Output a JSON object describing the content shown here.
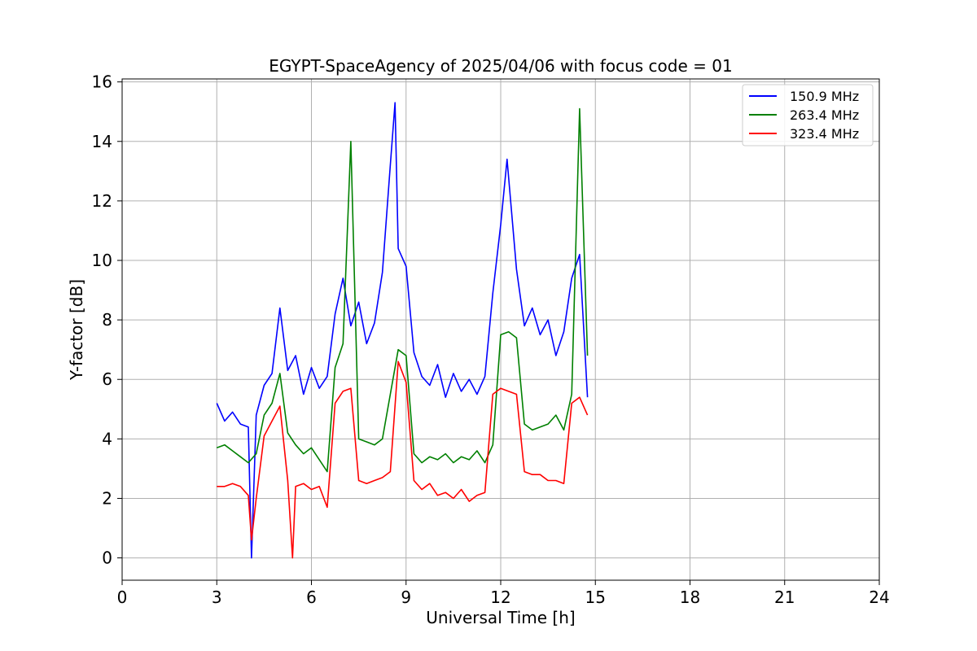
{
  "chart_data": {
    "type": "line",
    "title": "EGYPT-SpaceAgency of 2025/04/06 with focus code = 01",
    "xlabel": "Universal Time [h]",
    "ylabel": "Y-factor [dB]",
    "xlim": [
      0,
      24
    ],
    "ylim": [
      -0.75,
      16.1
    ],
    "xticks": [
      0,
      3,
      6,
      9,
      12,
      15,
      18,
      21,
      24
    ],
    "yticks": [
      0,
      2,
      4,
      6,
      8,
      10,
      12,
      14,
      16
    ],
    "grid": true,
    "legend_position": "top-right",
    "series": [
      {
        "name": "150.9 MHz",
        "color": "#0000ff",
        "x": [
          3.0,
          3.25,
          3.5,
          3.75,
          4.0,
          4.1,
          4.25,
          4.5,
          4.75,
          5.0,
          5.25,
          5.5,
          5.75,
          6.0,
          6.25,
          6.5,
          6.75,
          7.0,
          7.25,
          7.5,
          7.75,
          8.0,
          8.25,
          8.5,
          8.65,
          8.75,
          9.0,
          9.25,
          9.5,
          9.75,
          10.0,
          10.25,
          10.5,
          10.75,
          11.0,
          11.25,
          11.5,
          11.75,
          12.0,
          12.2,
          12.5,
          12.75,
          13.0,
          13.25,
          13.5,
          13.75,
          14.0,
          14.25,
          14.5,
          14.75
        ],
        "y": [
          5.2,
          4.6,
          4.9,
          4.5,
          4.4,
          0.0,
          4.8,
          5.8,
          6.2,
          8.4,
          6.3,
          6.8,
          5.5,
          6.4,
          5.7,
          6.1,
          8.2,
          9.4,
          7.8,
          8.6,
          7.2,
          7.9,
          9.6,
          13.2,
          15.3,
          10.4,
          9.8,
          6.9,
          6.1,
          5.8,
          6.5,
          5.4,
          6.2,
          5.6,
          6.0,
          5.5,
          6.1,
          8.9,
          11.2,
          13.4,
          9.7,
          7.8,
          8.4,
          7.5,
          8.0,
          6.8,
          7.6,
          9.4,
          10.2,
          5.4
        ]
      },
      {
        "name": "263.4 MHz",
        "color": "#008000",
        "x": [
          3.0,
          3.25,
          3.5,
          3.75,
          4.0,
          4.25,
          4.5,
          4.75,
          5.0,
          5.25,
          5.5,
          5.75,
          6.0,
          6.25,
          6.5,
          6.75,
          7.0,
          7.25,
          7.5,
          7.75,
          8.0,
          8.25,
          8.5,
          8.75,
          9.0,
          9.25,
          9.5,
          9.75,
          10.0,
          10.25,
          10.5,
          10.75,
          11.0,
          11.25,
          11.5,
          11.75,
          12.0,
          12.25,
          12.5,
          12.75,
          13.0,
          13.25,
          13.5,
          13.75,
          14.0,
          14.25,
          14.5,
          14.75
        ],
        "y": [
          3.7,
          3.8,
          3.6,
          3.4,
          3.2,
          3.5,
          4.8,
          5.2,
          6.2,
          4.2,
          3.8,
          3.5,
          3.7,
          3.3,
          2.9,
          6.4,
          7.2,
          14.0,
          4.0,
          3.9,
          3.8,
          4.0,
          5.5,
          7.0,
          6.8,
          3.5,
          3.2,
          3.4,
          3.3,
          3.5,
          3.2,
          3.4,
          3.3,
          3.6,
          3.2,
          3.8,
          7.5,
          7.6,
          7.4,
          4.5,
          4.3,
          4.4,
          4.5,
          4.8,
          4.3,
          5.5,
          15.1,
          6.8
        ]
      },
      {
        "name": "323.4 MHz",
        "color": "#ff0000",
        "x": [
          3.0,
          3.25,
          3.5,
          3.75,
          4.0,
          4.1,
          4.25,
          4.5,
          4.75,
          5.0,
          5.25,
          5.4,
          5.5,
          5.75,
          6.0,
          6.25,
          6.5,
          6.75,
          7.0,
          7.25,
          7.5,
          7.75,
          8.0,
          8.25,
          8.5,
          8.75,
          9.0,
          9.25,
          9.5,
          9.75,
          10.0,
          10.25,
          10.5,
          10.75,
          11.0,
          11.25,
          11.5,
          11.75,
          12.0,
          12.25,
          12.5,
          12.75,
          13.0,
          13.25,
          13.5,
          13.75,
          14.0,
          14.25,
          14.5,
          14.75
        ],
        "y": [
          2.4,
          2.4,
          2.5,
          2.4,
          2.1,
          0.6,
          2.0,
          4.1,
          4.6,
          5.1,
          2.6,
          0.0,
          2.4,
          2.5,
          2.3,
          2.4,
          1.7,
          5.2,
          5.6,
          5.7,
          2.6,
          2.5,
          2.6,
          2.7,
          2.9,
          6.6,
          5.9,
          2.6,
          2.3,
          2.5,
          2.1,
          2.2,
          2.0,
          2.3,
          1.9,
          2.1,
          2.2,
          5.5,
          5.7,
          5.6,
          5.5,
          2.9,
          2.8,
          2.8,
          2.6,
          2.6,
          2.5,
          5.2,
          5.4,
          4.8
        ]
      }
    ]
  }
}
